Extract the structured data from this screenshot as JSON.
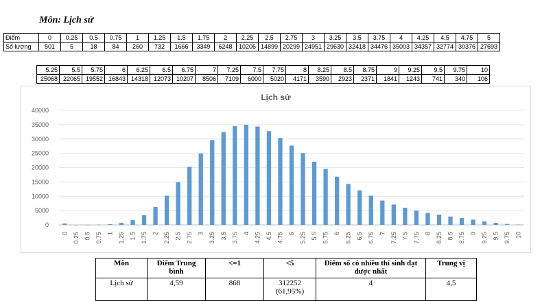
{
  "subject_heading": "Môn: Lịch sử",
  "table1": {
    "row_label_score": "Điểm",
    "row_label_count": "Số lượng",
    "scores": [
      "0",
      "0.25",
      "0.5",
      "0.75",
      "1",
      "1.25",
      "1.5",
      "1.75",
      "2",
      "2.25",
      "2.5",
      "2.75",
      "3",
      "3.25",
      "3.5",
      "3.75",
      "4",
      "4.25",
      "4.5",
      "4.75",
      "5"
    ],
    "counts": [
      "501",
      "5",
      "18",
      "84",
      "260",
      "732",
      "1666",
      "3349",
      "6248",
      "10206",
      "14899",
      "20299",
      "24951",
      "29630",
      "32418",
      "34476",
      "35003",
      "34357",
      "32774",
      "30376",
      "27693"
    ]
  },
  "table2": {
    "scores": [
      "5.25",
      "5.5",
      "5.75",
      "6",
      "6.25",
      "6.5",
      "6.75",
      "7",
      "7.25",
      "7.5",
      "7.75",
      "8",
      "8.25",
      "8.5",
      "8.75",
      "9",
      "9.25",
      "9.5",
      "9.75",
      "10"
    ],
    "counts": [
      "25068",
      "22065",
      "19552",
      "16843",
      "14318",
      "12073",
      "10207",
      "8506",
      "7109",
      "6000",
      "5020",
      "4171",
      "3590",
      "2923",
      "2371",
      "1841",
      "1243",
      "741",
      "340",
      "106"
    ]
  },
  "chart_data": {
    "type": "bar",
    "title": "Lịch sử",
    "xlabel": "",
    "ylabel": "",
    "ylim": [
      0,
      40000
    ],
    "yticks": [
      "0",
      "5000",
      "10000",
      "15000",
      "20000",
      "25000",
      "30000",
      "35000",
      "40000"
    ],
    "grid": true,
    "categories": [
      "0",
      "0.25",
      "0.5",
      "0.75",
      "1",
      "1.25",
      "1.5",
      "1.75",
      "2",
      "2.25",
      "2.5",
      "2.75",
      "3",
      "3.25",
      "3.5",
      "3.75",
      "4",
      "4.25",
      "4.5",
      "4.75",
      "5",
      "5.25",
      "5.5",
      "5.75",
      "6",
      "6.25",
      "6.5",
      "6.75",
      "7",
      "7.25",
      "7.5",
      "7.75",
      "8",
      "8.25",
      "8.5",
      "8.75",
      "9",
      "9.25",
      "9.5",
      "9.75",
      "10"
    ],
    "values": [
      501,
      5,
      18,
      84,
      260,
      732,
      1666,
      3349,
      6248,
      10206,
      14899,
      20299,
      24951,
      29630,
      32418,
      34476,
      35003,
      34357,
      32774,
      30376,
      27693,
      25068,
      22065,
      19552,
      16843,
      14318,
      12073,
      10207,
      8506,
      7109,
      6000,
      5020,
      4171,
      3590,
      2923,
      2371,
      1841,
      1243,
      741,
      340,
      106
    ],
    "bar_color": "#5b9bd5"
  },
  "summary": {
    "headers": [
      "Môn",
      "Điểm Trung bình",
      "<=1",
      "<5",
      "Điểm số có nhiều thí sinh đạt được nhất",
      "Trung vị"
    ],
    "row": [
      "Lịch sử",
      "4,59",
      "868",
      "312252 (61,95%)",
      "4",
      "4,5"
    ]
  }
}
